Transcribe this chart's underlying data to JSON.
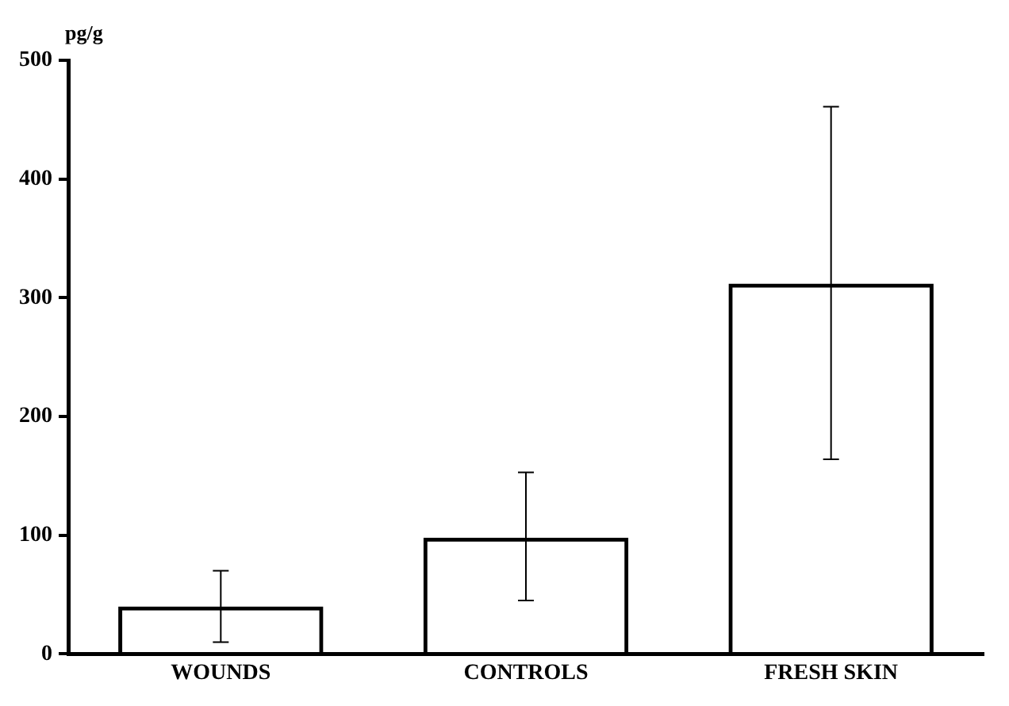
{
  "chart_data": {
    "type": "bar",
    "ylabel": "pg/g",
    "categories": [
      "WOUNDS",
      "CONTROLS",
      "FRESH SKIN"
    ],
    "values": [
      40,
      98,
      312
    ],
    "color": "#000000",
    "errors": [
      [
        10,
        70
      ],
      [
        45,
        153
      ],
      [
        164,
        461
      ]
    ],
    "ylim": [
      0,
      500
    ],
    "yticks": [
      0,
      100,
      200,
      300,
      400,
      500
    ],
    "grid": false,
    "legend": false
  }
}
